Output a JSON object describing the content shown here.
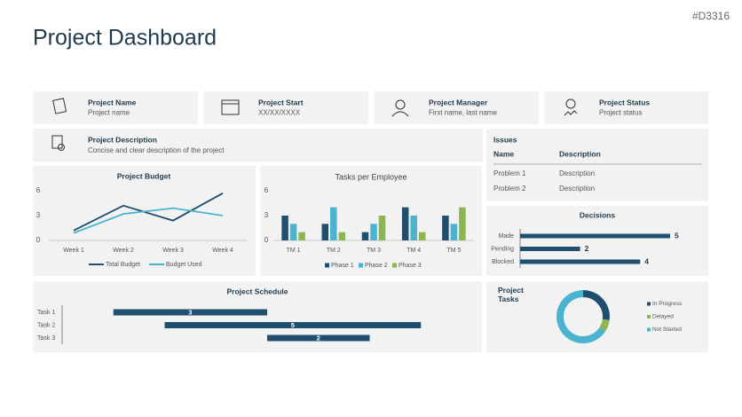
{
  "page_id": "#D3316",
  "title": "Project Dashboard",
  "cards": [
    {
      "label": "Project Name",
      "value": "Project name"
    },
    {
      "label": "Project Start",
      "value": "XX/XX/XXXX"
    },
    {
      "label": "Project Manager",
      "value": "First name, last name"
    },
    {
      "label": "Project Status",
      "value": "Project status"
    }
  ],
  "description": {
    "label": "Project Description",
    "value": "Concise and clear description of the project"
  },
  "issues": {
    "title": "Issues",
    "columns": [
      "Name",
      "Description"
    ],
    "rows": [
      [
        "Problem 1",
        "Description"
      ],
      [
        "Problem 2",
        "Description"
      ]
    ]
  },
  "chart_data": [
    {
      "type": "line",
      "title": "Project Budget",
      "categories": [
        "Week 1",
        "Week 2",
        "Week 3",
        "Week 4"
      ],
      "series": [
        {
          "name": "Total Budget",
          "color": "#1f4e6e",
          "values": [
            1.2,
            4.2,
            2.4,
            5.7
          ]
        },
        {
          "name": "Budget Used",
          "color": "#4bb3cf",
          "values": [
            0.9,
            3.2,
            3.9,
            3.0
          ]
        }
      ],
      "ylim": [
        0,
        6
      ],
      "yticks": [
        0,
        3,
        6
      ],
      "legend": "bottom"
    },
    {
      "type": "bar",
      "title": "Tasks per Employee",
      "categories": [
        "TM 1",
        "TM 2",
        "TM 3",
        "TM 4",
        "TM 5"
      ],
      "series": [
        {
          "name": "Phase 1",
          "color": "#1f4e6e",
          "values": [
            3,
            2,
            1,
            4,
            3
          ]
        },
        {
          "name": "Phase 2",
          "color": "#4bb3cf",
          "values": [
            2,
            4,
            2,
            3,
            2
          ]
        },
        {
          "name": "Phase 3",
          "color": "#8db650",
          "values": [
            1,
            1,
            3,
            1,
            4
          ]
        }
      ],
      "ylim": [
        0,
        6
      ],
      "yticks": [
        0,
        3,
        6
      ],
      "legend": "bottom"
    },
    {
      "type": "hbar",
      "title": "Decisions",
      "categories": [
        "Made",
        "Pending",
        "Blocked"
      ],
      "values": [
        5,
        2,
        4
      ],
      "color": "#1f4e6e",
      "xlim": [
        0,
        5
      ]
    },
    {
      "type": "gantt",
      "title": "Project Schedule",
      "categories": [
        "Task 1",
        "Task 2",
        "Task 3"
      ],
      "starts": [
        1,
        2,
        4
      ],
      "values": [
        3,
        5,
        2
      ],
      "color": "#1f4e6e",
      "xlim": [
        0,
        8
      ]
    },
    {
      "type": "donut",
      "title": "Project Tasks",
      "categories": [
        "In Progress",
        "Delayed",
        "Not Started"
      ],
      "values": [
        27,
        7,
        66
      ],
      "colors": [
        "#1f4e6e",
        "#8db650",
        "#4bb3cf"
      ]
    }
  ]
}
